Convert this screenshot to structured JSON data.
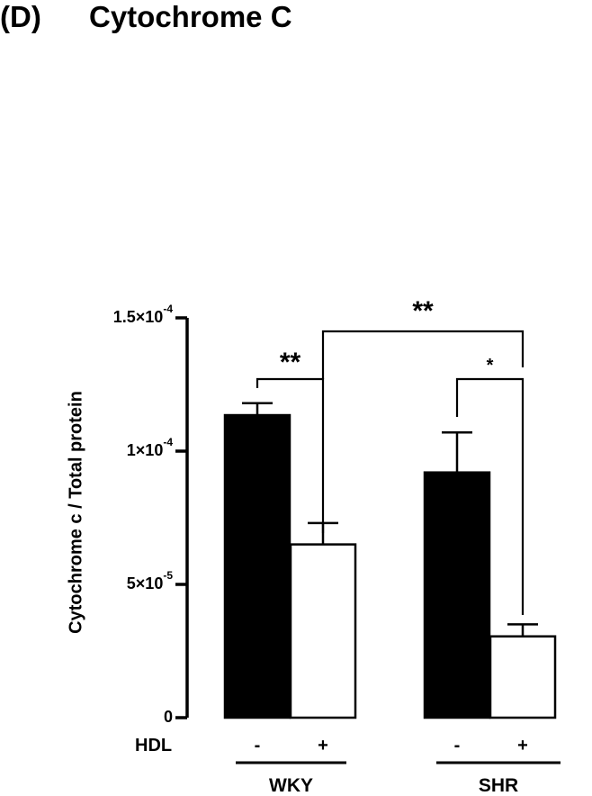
{
  "panel_label": "(D)",
  "chart_data": {
    "type": "bar",
    "title": "Cytochrome C",
    "xlabel": "",
    "ylabel": "Cytochrome c / Total protein",
    "ylim": [
      0,
      0.00015
    ],
    "yticks": [
      {
        "value": 0,
        "base": "0",
        "exp": ""
      },
      {
        "value": 5e-05,
        "base": "5×10",
        "exp": "-5"
      },
      {
        "value": 0.0001,
        "base": "1×10",
        "exp": "-4"
      },
      {
        "value": 0.00015,
        "base": "1.5×10",
        "exp": "-4"
      }
    ],
    "factor_label": "HDL",
    "groups": [
      "WKY",
      "SHR"
    ],
    "bars": [
      {
        "group": "WKY",
        "hdl": "-",
        "fill": "#000000",
        "value": 0.0001135,
        "error": 4.5e-06
      },
      {
        "group": "WKY",
        "hdl": "+",
        "fill": "#ffffff",
        "value": 6.5e-05,
        "error": 8e-06
      },
      {
        "group": "SHR",
        "hdl": "-",
        "fill": "#000000",
        "value": 9.2e-05,
        "error": 1.5e-05
      },
      {
        "group": "SHR",
        "hdl": "+",
        "fill": "#ffffff",
        "value": 3.05e-05,
        "error": 4.5e-06
      }
    ],
    "significance": [
      {
        "from": 0,
        "to": 1,
        "label": "**"
      },
      {
        "from": 2,
        "to": 3,
        "label": "*"
      },
      {
        "from": 1,
        "to": 3,
        "label": "**"
      }
    ],
    "grid": false,
    "legend": "none"
  }
}
